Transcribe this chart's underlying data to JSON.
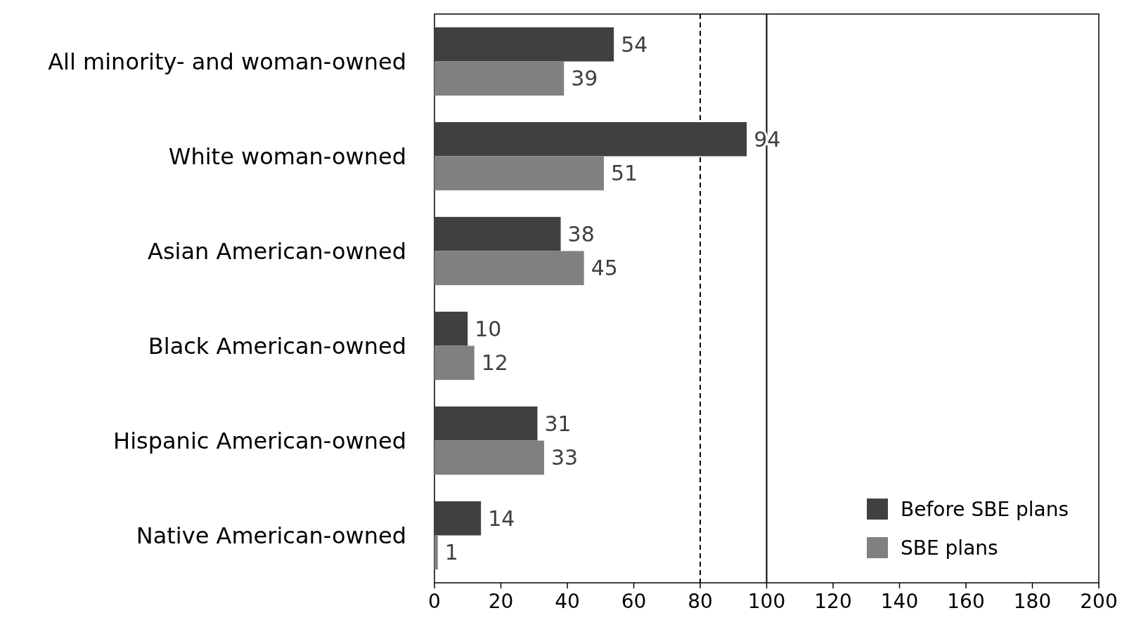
{
  "chart_data": {
    "type": "bar",
    "orientation": "horizontal",
    "categories": [
      "All minority- and woman-owned",
      "White woman-owned",
      "Asian American-owned",
      "Black American-owned",
      "Hispanic American-owned",
      "Native American-owned"
    ],
    "series": [
      {
        "name": "Before SBE plans",
        "color": "#404040",
        "values": [
          54,
          94,
          38,
          10,
          31,
          14
        ]
      },
      {
        "name": "SBE plans",
        "color": "#808080",
        "values": [
          39,
          51,
          45,
          12,
          33,
          1
        ]
      }
    ],
    "xlim": [
      0,
      200
    ],
    "xticks": [
      0,
      20,
      40,
      60,
      80,
      100,
      120,
      140,
      160,
      180,
      200
    ],
    "data_labels": true,
    "legend": "bottom right",
    "grid": false,
    "ref_lines": [
      {
        "axis": "x",
        "value": 80,
        "color": "#000000",
        "line_style": "dashed"
      },
      {
        "axis": "x",
        "value": 100,
        "color": "#000000",
        "line_style": "solid"
      }
    ]
  }
}
